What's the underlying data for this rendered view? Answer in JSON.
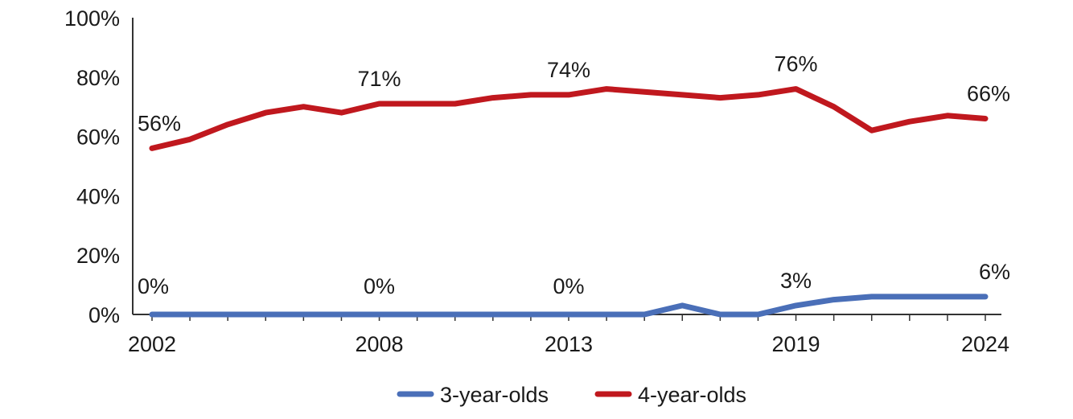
{
  "chart_data": {
    "type": "line",
    "x": [
      2002,
      2003,
      2004,
      2005,
      2006,
      2007,
      2008,
      2009,
      2010,
      2011,
      2012,
      2013,
      2014,
      2015,
      2016,
      2017,
      2018,
      2019,
      2020,
      2021,
      2022,
      2023,
      2024
    ],
    "series": [
      {
        "name": "3-year-olds",
        "color": "#4a6fb8",
        "values": [
          0,
          0,
          0,
          0,
          0,
          0,
          0,
          0,
          0,
          0,
          0,
          0,
          0,
          0,
          3,
          0,
          0,
          3,
          5,
          6,
          6,
          6,
          6
        ],
        "labels": [
          {
            "year": 2002,
            "text": "0%"
          },
          {
            "year": 2008,
            "text": "0%"
          },
          {
            "year": 2013,
            "text": "0%"
          },
          {
            "year": 2019,
            "text": "3%"
          },
          {
            "year": 2024,
            "text": "6%"
          }
        ]
      },
      {
        "name": "4-year-olds",
        "color": "#c0181e",
        "values": [
          56,
          59,
          64,
          68,
          70,
          68,
          71,
          71,
          71,
          73,
          74,
          74,
          76,
          75,
          74,
          73,
          74,
          76,
          70,
          62,
          65,
          67,
          66
        ],
        "labels": [
          {
            "year": 2002,
            "text": "56%"
          },
          {
            "year": 2008,
            "text": "71%"
          },
          {
            "year": 2013,
            "text": "74%"
          },
          {
            "year": 2019,
            "text": "76%"
          },
          {
            "year": 2024,
            "text": "66%"
          }
        ]
      }
    ],
    "ylim": [
      0,
      100
    ],
    "y_ticks": [
      "0%",
      "20%",
      "40%",
      "60%",
      "80%",
      "100%"
    ],
    "x_tick_labels": [
      "2002",
      "2008",
      "2013",
      "2019",
      "2024"
    ],
    "xlabel": "",
    "ylabel": "",
    "grid": false,
    "legend_position": "bottom"
  }
}
